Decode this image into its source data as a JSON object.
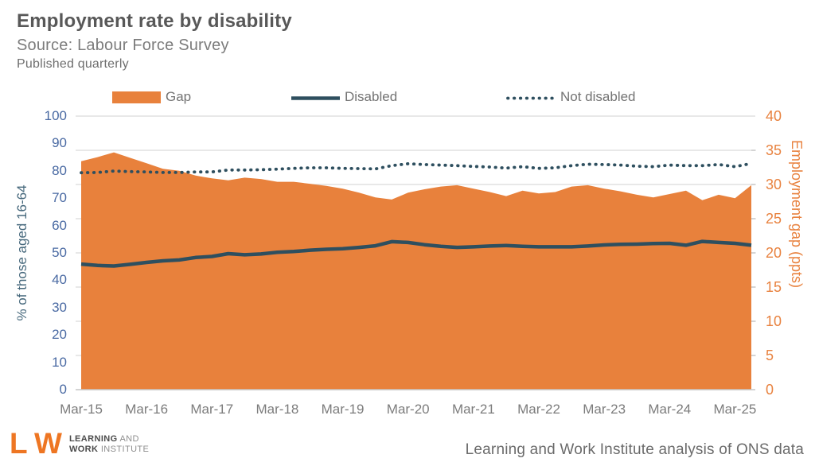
{
  "header": {
    "title": "Employment rate by disability",
    "source": "Source: Labour Force Survey",
    "frequency": "Published quarterly"
  },
  "legend": [
    {
      "label": "Gap",
      "swatch": "area-swatch",
      "color": "#e8813c"
    },
    {
      "label": "Disabled",
      "swatch": "solid-line",
      "color": "#2e4f5f"
    },
    {
      "label": "Not disabled",
      "swatch": "dotted-line",
      "color": "#2e4f5f"
    }
  ],
  "chart_data": {
    "type": "area",
    "quarters": [
      "Mar-15",
      "Jun-15",
      "Sep-15",
      "Dec-15",
      "Mar-16",
      "Jun-16",
      "Sep-16",
      "Dec-16",
      "Mar-17",
      "Jun-17",
      "Sep-17",
      "Dec-17",
      "Mar-18",
      "Jun-18",
      "Sep-18",
      "Dec-18",
      "Mar-19",
      "Jun-19",
      "Sep-19",
      "Dec-19",
      "Mar-20",
      "Jun-20",
      "Sep-20",
      "Dec-20",
      "Mar-21",
      "Jun-21",
      "Sep-21",
      "Dec-21",
      "Mar-22",
      "Jun-22",
      "Sep-22",
      "Dec-22",
      "Mar-23",
      "Jun-23",
      "Sep-23",
      "Dec-23",
      "Mar-24",
      "Jun-24",
      "Sep-24",
      "Dec-24",
      "Mar-25",
      "Jun-25"
    ],
    "x_tick_labels": [
      "Mar-15",
      "Mar-16",
      "Mar-17",
      "Mar-18",
      "Mar-19",
      "Mar-20",
      "Mar-21",
      "Mar-22",
      "Mar-23",
      "Mar-24",
      "Mar-25"
    ],
    "series": [
      {
        "name": "Gap",
        "type": "area",
        "axis": "right",
        "color": "#e8813c",
        "values": [
          33.4,
          34.0,
          34.7,
          33.9,
          33.1,
          32.3,
          32.0,
          31.3,
          30.9,
          30.6,
          31.0,
          30.8,
          30.4,
          30.4,
          30.1,
          29.8,
          29.4,
          28.8,
          28.1,
          27.8,
          28.8,
          29.3,
          29.7,
          29.9,
          29.4,
          28.9,
          28.3,
          29.1,
          28.7,
          28.9,
          29.7,
          29.9,
          29.4,
          29.0,
          28.5,
          28.1,
          28.6,
          29.1,
          27.7,
          28.5,
          28.0,
          29.9
        ]
      },
      {
        "name": "Disabled",
        "type": "line",
        "axis": "left",
        "color": "#2e4f5f",
        "values": [
          45.9,
          45.4,
          45.2,
          45.8,
          46.5,
          47.1,
          47.4,
          48.3,
          48.7,
          49.7,
          49.3,
          49.6,
          50.2,
          50.5,
          51.0,
          51.3,
          51.5,
          52.0,
          52.6,
          54.1,
          53.8,
          53.0,
          52.4,
          52.0,
          52.2,
          52.5,
          52.7,
          52.4,
          52.2,
          52.2,
          52.2,
          52.5,
          52.9,
          53.1,
          53.2,
          53.4,
          53.5,
          52.8,
          54.2,
          53.8,
          53.5,
          52.8
        ]
      },
      {
        "name": "Not disabled",
        "type": "dotted-line",
        "axis": "left",
        "color": "#2e4f5f",
        "values": [
          79.3,
          79.4,
          79.9,
          79.7,
          79.6,
          79.4,
          79.4,
          79.6,
          79.6,
          80.3,
          80.3,
          80.4,
          80.6,
          80.9,
          81.1,
          81.1,
          80.9,
          80.8,
          80.7,
          81.9,
          82.6,
          82.3,
          82.1,
          81.9,
          81.6,
          81.4,
          81.0,
          81.5,
          80.9,
          81.1,
          81.9,
          82.4,
          82.3,
          82.1,
          81.7,
          81.5,
          82.1,
          81.9,
          81.9,
          82.3,
          81.5,
          82.7
        ]
      }
    ],
    "left_axis": {
      "label": "% of those aged 16-64",
      "min": 0,
      "max": 100,
      "step": 10,
      "tick_color": "#4a6aa3"
    },
    "right_axis": {
      "label": "Employment gap (ppts)",
      "min": 0,
      "max": 40,
      "step": 5,
      "tick_color": "#e8823f"
    },
    "grid": {
      "horizontal": true,
      "color": "#dadada"
    }
  },
  "footer": {
    "caption": "Learning and Work Institute analysis of ONS data",
    "logo": {
      "mark_l": "L",
      "mark_amp": "&",
      "mark_w": "W",
      "word1": "LEARNING",
      "word2": " AND",
      "word3": "WORK",
      "word4": " INSTITUTE"
    }
  }
}
